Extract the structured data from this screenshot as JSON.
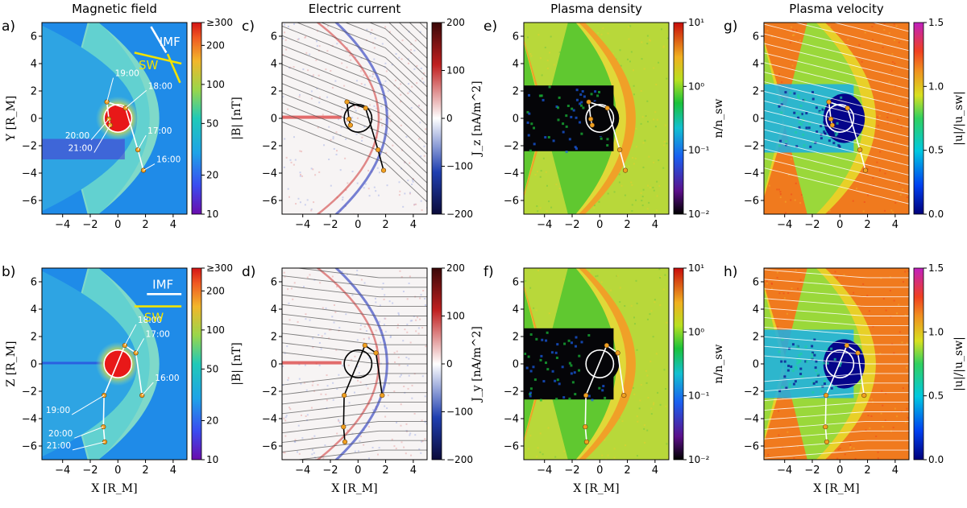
{
  "figure": {
    "panel_labels": [
      "a)",
      "b)",
      "c)",
      "d)",
      "e)",
      "f)",
      "g)",
      "h)"
    ],
    "column_titles": [
      "Magnetic field",
      "Electric current",
      "Plasma density",
      "Plasma velocity"
    ],
    "axis_labels": {
      "x": "X [R_M]",
      "y_top": "Y [R_M]",
      "y_bottom": "Z [R_M]"
    }
  },
  "chart_data": [
    {
      "panel": "a)",
      "type": "heatmap",
      "title": "Magnetic field",
      "quantity": "|B| [nT]",
      "xlabel": "X [R_M]",
      "ylabel": "Y [R_M]",
      "xlim": [
        -5.5,
        5
      ],
      "ylim": [
        -7,
        7
      ],
      "xticks": [
        -4,
        -2,
        0,
        2,
        4
      ],
      "yticks": [
        -6,
        -4,
        -2,
        0,
        2,
        4,
        6
      ],
      "colorbar": {
        "label": "|B| [nT]",
        "scale": "log",
        "range": [
          10,
          300
        ],
        "ticks": [
          "10",
          "20",
          "50",
          "100",
          "200",
          "≥300"
        ]
      },
      "annotations": [
        "IMF",
        "SW"
      ],
      "orbit_times": [
        "16:00",
        "17:00",
        "18:00",
        "19:00",
        "20:00",
        "21:00"
      ]
    },
    {
      "panel": "b)",
      "type": "heatmap",
      "title": "",
      "quantity": "|B| [nT]",
      "xlabel": "X [R_M]",
      "ylabel": "Z [R_M]",
      "xlim": [
        -5.5,
        5
      ],
      "ylim": [
        -7,
        7
      ],
      "xticks": [
        -4,
        -2,
        0,
        2,
        4
      ],
      "yticks": [
        -6,
        -4,
        -2,
        0,
        2,
        4,
        6
      ],
      "colorbar": {
        "label": "|B| [nT]",
        "scale": "log",
        "range": [
          10,
          300
        ],
        "ticks": [
          "10",
          "20",
          "50",
          "100",
          "200",
          "≥300"
        ]
      },
      "annotations": [
        "IMF",
        "SW"
      ],
      "orbit_times": [
        "16:00",
        "17:00",
        "18:00",
        "19:00",
        "20:00",
        "21:00"
      ]
    },
    {
      "panel": "c)",
      "type": "heatmap",
      "title": "Electric current",
      "quantity": "J_z [nA/m^2]",
      "xlabel": "",
      "ylabel": "",
      "xlim": [
        -5.5,
        5
      ],
      "ylim": [
        -7,
        7
      ],
      "xticks": [
        -4,
        -2,
        0,
        2,
        4
      ],
      "yticks": [
        -6,
        -4,
        -2,
        0,
        2,
        4,
        6
      ],
      "colorbar": {
        "label": "J_z [nA/m^2]",
        "scale": "linear",
        "range": [
          -200,
          200
        ],
        "ticks": [
          "200",
          "100",
          "0",
          "−100",
          "−200"
        ]
      }
    },
    {
      "panel": "d)",
      "type": "heatmap",
      "title": "",
      "quantity": "J_y [nA/m^2]",
      "xlabel": "X [R_M]",
      "ylabel": "",
      "xlim": [
        -5.5,
        5
      ],
      "ylim": [
        -7,
        7
      ],
      "xticks": [
        -4,
        -2,
        0,
        2,
        4
      ],
      "yticks": [
        -6,
        -4,
        -2,
        0,
        2,
        4,
        6
      ],
      "colorbar": {
        "label": "J_y [nA/m^2]",
        "scale": "linear",
        "range": [
          -200,
          200
        ],
        "ticks": [
          "200",
          "100",
          "0",
          "−100",
          "−200"
        ]
      }
    },
    {
      "panel": "e)",
      "type": "heatmap",
      "title": "Plasma density",
      "quantity": "n/n_sw",
      "xlabel": "",
      "ylabel": "",
      "xlim": [
        -5.5,
        5
      ],
      "ylim": [
        -7,
        7
      ],
      "xticks": [
        -4,
        -2,
        0,
        2,
        4
      ],
      "yticks": [
        -6,
        -4,
        -2,
        0,
        2,
        4,
        6
      ],
      "colorbar": {
        "label": "n/n_sw",
        "scale": "log",
        "range": [
          0.01,
          10
        ],
        "ticks": [
          "10¹",
          "10⁰",
          "10⁻¹",
          "10⁻²"
        ]
      }
    },
    {
      "panel": "f)",
      "type": "heatmap",
      "title": "",
      "quantity": "n/n_sw",
      "xlabel": "X [R_M]",
      "ylabel": "",
      "xlim": [
        -5.5,
        5
      ],
      "ylim": [
        -7,
        7
      ],
      "xticks": [
        -4,
        -2,
        0,
        2,
        4
      ],
      "yticks": [
        -6,
        -4,
        -2,
        0,
        2,
        4,
        6
      ],
      "colorbar": {
        "label": "n/n_sw",
        "scale": "log",
        "range": [
          0.01,
          10
        ],
        "ticks": [
          "10¹",
          "10⁰",
          "10⁻¹",
          "10⁻²"
        ]
      }
    },
    {
      "panel": "g)",
      "type": "heatmap",
      "title": "Plasma velocity",
      "quantity": "|u|/|u_sw|",
      "xlabel": "",
      "ylabel": "",
      "xlim": [
        -5.5,
        5
      ],
      "ylim": [
        -7,
        7
      ],
      "xticks": [
        -4,
        -2,
        0,
        2,
        4
      ],
      "yticks": [
        -6,
        -4,
        -2,
        0,
        2,
        4,
        6
      ],
      "colorbar": {
        "label": "|u|/|u_sw|",
        "scale": "linear",
        "range": [
          0,
          1.5
        ],
        "ticks": [
          "1.5",
          "1.0",
          "0.5",
          "0.0"
        ]
      }
    },
    {
      "panel": "h)",
      "type": "heatmap",
      "title": "",
      "quantity": "|u|/|u_sw|",
      "xlabel": "X [R_M]",
      "ylabel": "",
      "xlim": [
        -5.5,
        5
      ],
      "ylim": [
        -7,
        7
      ],
      "xticks": [
        -4,
        -2,
        0,
        2,
        4
      ],
      "yticks": [
        -6,
        -4,
        -2,
        0,
        2,
        4,
        6
      ],
      "colorbar": {
        "label": "|u|/|u_sw|",
        "scale": "linear",
        "range": [
          0,
          1.5
        ],
        "ticks": [
          "1.5",
          "1.0",
          "0.5",
          "0.0"
        ]
      }
    }
  ],
  "orbit": {
    "xy": {
      "times": [
        "16:00",
        "17:00",
        "18:00",
        "19:00",
        "20:00",
        "21:00"
      ],
      "x": [
        1.85,
        1.45,
        0.55,
        -0.8,
        -0.65,
        -0.55
      ],
      "y": [
        -3.8,
        -2.3,
        0.75,
        1.2,
        -0.05,
        -0.5
      ]
    },
    "xz": {
      "times": [
        "16:00",
        "17:00",
        "18:00",
        "19:00",
        "20:00",
        "21:00"
      ],
      "x": [
        1.75,
        1.3,
        0.5,
        -1.0,
        -1.05,
        -0.95
      ],
      "z": [
        -2.3,
        0.8,
        1.35,
        -2.3,
        -4.6,
        -5.7
      ]
    }
  }
}
